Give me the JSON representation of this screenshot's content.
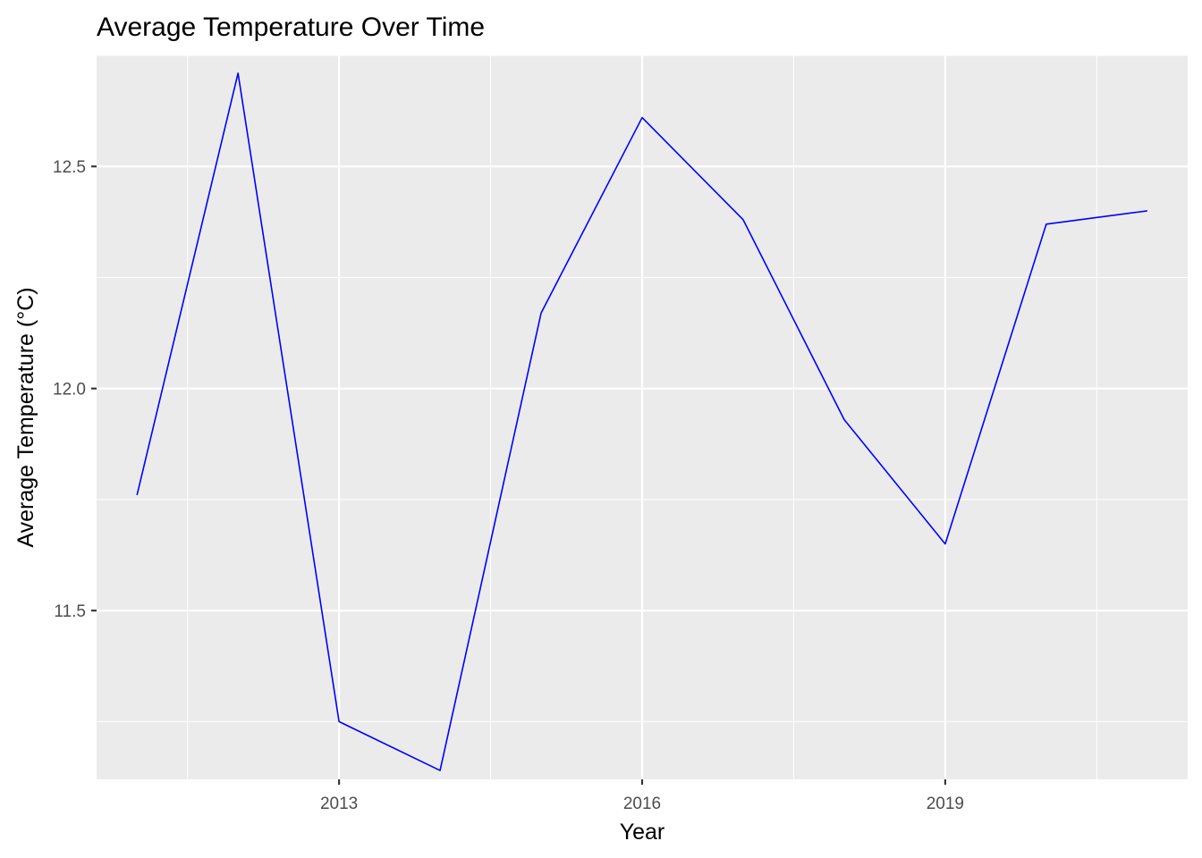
{
  "chart_data": {
    "type": "line",
    "title": "Average Temperature Over Time",
    "xlabel": "Year",
    "ylabel": "Average Temperature (°C)",
    "xlim": [
      2010.6,
      2021.4
    ],
    "ylim": [
      11.12,
      12.75
    ],
    "x_major_ticks": [
      2013,
      2016,
      2019
    ],
    "x_minor_ticks": [
      2011.5,
      2014.5,
      2017.5,
      2020.5
    ],
    "y_major_ticks": [
      11.5,
      12.0,
      12.5
    ],
    "y_minor_ticks": [
      11.25,
      11.75,
      12.25,
      12.75
    ],
    "x_tick_labels": [
      "2013",
      "2016",
      "2019"
    ],
    "y_tick_labels": [
      "11.5",
      "12.0",
      "12.5"
    ],
    "grid": true,
    "legend": "none",
    "series": [
      {
        "color": "#0000FF",
        "x": [
          2011,
          2012,
          2013,
          2014,
          2015,
          2016,
          2017,
          2018,
          2019,
          2020,
          2021
        ],
        "y": [
          11.76,
          12.71,
          11.25,
          11.14,
          12.17,
          12.61,
          12.38,
          11.93,
          11.65,
          12.37,
          12.4
        ]
      }
    ]
  }
}
